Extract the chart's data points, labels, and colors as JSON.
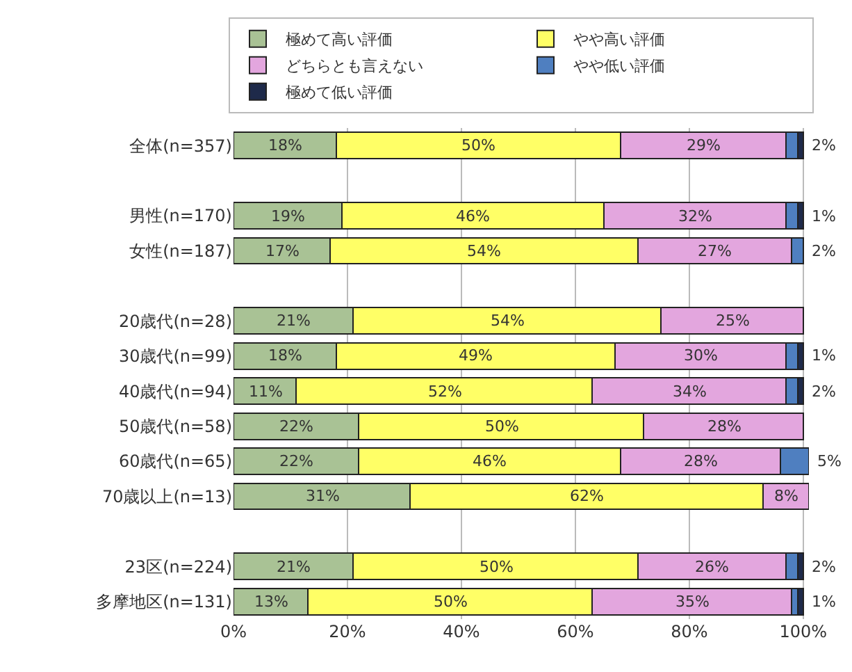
{
  "chart_data": {
    "type": "bar",
    "orientation": "horizontal",
    "stacked": true,
    "legend": "top",
    "grid": "x",
    "categories": [
      "全体(n=357)",
      null,
      "男性(n=170)",
      "女性(n=187)",
      null,
      "20歳代(n=28)",
      "30歳代(n=99)",
      "40歳代(n=94)",
      "50歳代(n=58)",
      "60歳代(n=65)",
      "70歳以上(n=13)",
      null,
      "23区(n=224)",
      "多摩地区(n=131)"
    ],
    "xlim": [
      0,
      101
    ],
    "xticks": [
      {
        "value": 0,
        "label": "0%"
      },
      {
        "value": 20,
        "label": "20%"
      },
      {
        "value": 40,
        "label": "40%"
      },
      {
        "value": 60,
        "label": "60%"
      },
      {
        "value": 80,
        "label": "80%"
      },
      {
        "value": 100,
        "label": "100%"
      }
    ],
    "series": [
      {
        "name": "極めて高い評価",
        "color": "#a9c295",
        "values": [
          18,
          null,
          19,
          17,
          null,
          21,
          18,
          11,
          22,
          22,
          31,
          null,
          21,
          13
        ],
        "value_labels": [
          "18%",
          null,
          "19%",
          "17%",
          null,
          "21%",
          "18%",
          "11%",
          "22%",
          "22%",
          "31%",
          null,
          "21%",
          "13%"
        ]
      },
      {
        "name": "やや高い評価",
        "color": "#ffff66",
        "values": [
          50,
          null,
          46,
          54,
          null,
          54,
          49,
          52,
          50,
          46,
          62,
          null,
          50,
          50
        ],
        "value_labels": [
          "50%",
          null,
          "46%",
          "54%",
          null,
          "54%",
          "49%",
          "52%",
          "50%",
          "46%",
          "62%",
          null,
          "50%",
          "50%"
        ]
      },
      {
        "name": "どちらとも言えない",
        "color": "#e3a6de",
        "values": [
          29,
          null,
          32,
          27,
          null,
          25,
          30,
          34,
          28,
          28,
          8,
          null,
          26,
          35
        ],
        "value_labels": [
          "29%",
          null,
          "32%",
          "27%",
          null,
          "25%",
          "30%",
          "34%",
          "28%",
          "28%",
          "8%",
          null,
          "26%",
          "35%"
        ]
      },
      {
        "name": "やや低い評価",
        "color": "#4f7fc0",
        "values": [
          2,
          null,
          2,
          2,
          null,
          null,
          2,
          2,
          null,
          5,
          null,
          null,
          2,
          1
        ],
        "value_labels": [
          "2%",
          null,
          null,
          "2%",
          null,
          null,
          null,
          "2%",
          null,
          "5%",
          null,
          null,
          "2%",
          null
        ]
      },
      {
        "name": "極めて低い評価",
        "color": "#1e2a4a",
        "values": [
          1,
          null,
          1,
          null,
          null,
          null,
          1,
          1,
          null,
          null,
          null,
          null,
          1,
          1
        ],
        "value_labels": [
          null,
          null,
          "1%",
          null,
          null,
          null,
          "1%",
          null,
          null,
          null,
          null,
          null,
          null,
          "1%"
        ]
      }
    ]
  }
}
